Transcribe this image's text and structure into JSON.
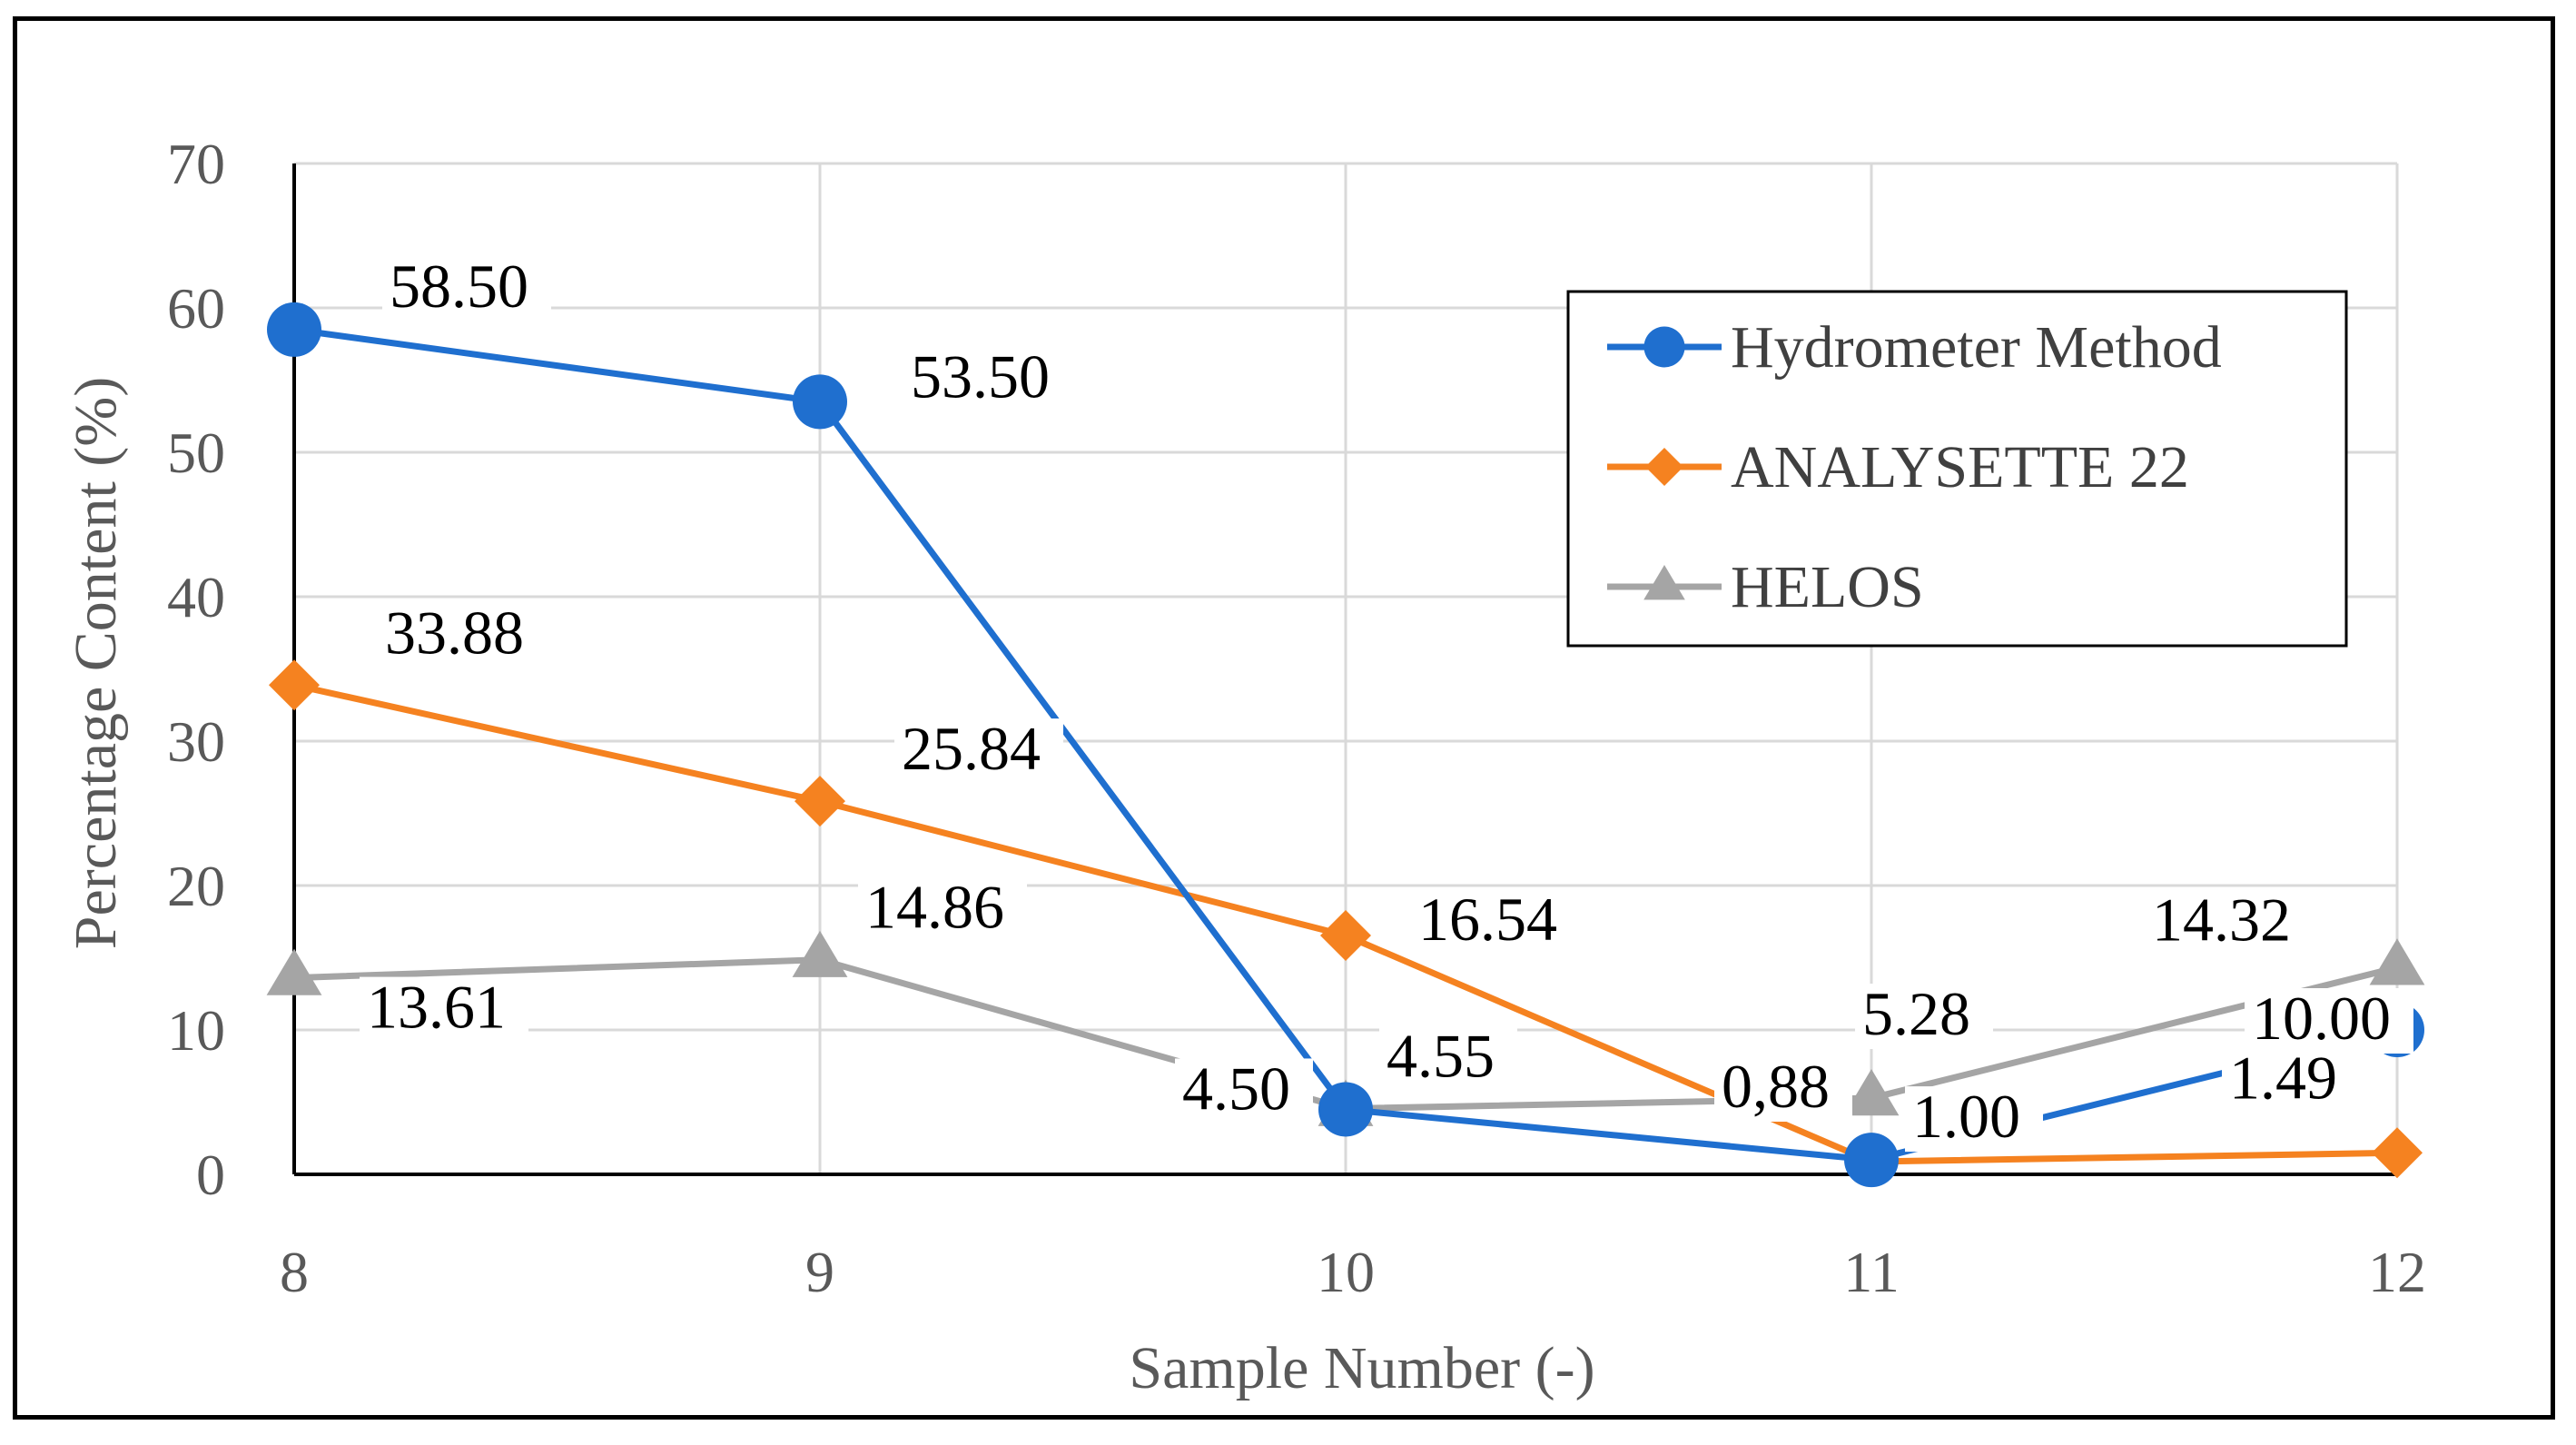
{
  "chart_data": {
    "type": "line",
    "title": "",
    "xlabel": "Sample Number (-)",
    "ylabel": "Percentage Content (%)",
    "x": [
      8,
      9,
      10,
      11,
      12
    ],
    "x_tick_labels": [
      "8",
      "9",
      "10",
      "11",
      "12"
    ],
    "ylim": [
      0,
      70
    ],
    "y_ticks": [
      0,
      10,
      20,
      30,
      40,
      50,
      60,
      70
    ],
    "y_tick_labels": [
      "0",
      "10",
      "20",
      "30",
      "40",
      "50",
      "60",
      "70"
    ],
    "grid": true,
    "legend_position": "top-right",
    "series": [
      {
        "name": "Hydrometer Method",
        "marker": "circle",
        "color": "#1f6fcf",
        "values": [
          58.5,
          53.5,
          4.5,
          1.0,
          10.0
        ],
        "labels": [
          "58.50",
          "53.50",
          "4.50",
          "1.00",
          "10.00"
        ]
      },
      {
        "name": "ANALYSETTE 22",
        "marker": "diamond",
        "color": "#f58220",
        "values": [
          33.88,
          25.84,
          16.54,
          0.88,
          1.49
        ],
        "labels": [
          "33.88",
          "25.84",
          "16.54",
          "0,88",
          "1.49"
        ]
      },
      {
        "name": "HELOS",
        "marker": "triangle",
        "color": "#a5a5a5",
        "values": [
          13.61,
          14.86,
          4.55,
          5.28,
          14.32
        ],
        "labels": [
          "13.61",
          "14.86",
          "4.55",
          "5.28",
          "14.32"
        ]
      }
    ]
  }
}
